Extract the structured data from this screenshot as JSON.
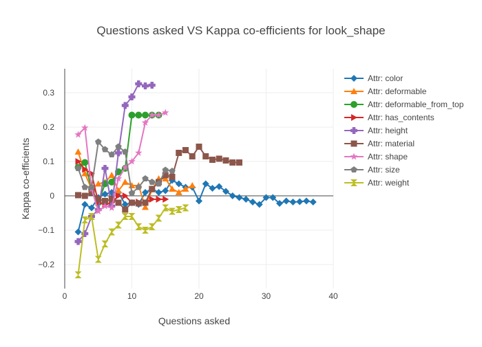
{
  "chart_data": {
    "type": "line",
    "title": "Questions asked VS Kappa co-efficients for look_shape",
    "xlabel": "Questions asked",
    "ylabel": "Kappa co-efficients",
    "xlim": [
      0,
      40
    ],
    "ylim": [
      -0.27,
      0.37
    ],
    "xticks": [
      0,
      10,
      20,
      30,
      40
    ],
    "yticks": [
      -0.2,
      -0.1,
      0,
      0.1,
      0.2,
      0.3
    ],
    "xtick_labels": [
      "0",
      "10",
      "20",
      "30",
      "40"
    ],
    "ytick_labels": [
      "−0.2",
      "−0.1",
      "0",
      "0.1",
      "0.2",
      "0.3"
    ],
    "grid": true,
    "legend_position": "right",
    "series": [
      {
        "name": "Attr: color",
        "color": "#1f77b4",
        "marker": "diamond",
        "x": [
          2,
          3,
          4,
          5,
          6,
          7,
          8,
          9,
          10,
          11,
          12,
          13,
          14,
          15,
          16,
          17,
          18,
          19,
          20,
          21,
          22,
          23,
          24,
          25,
          26,
          27,
          28,
          29,
          30,
          31,
          32,
          33,
          34,
          35,
          36,
          37
        ],
        "y": [
          -0.105,
          -0.025,
          -0.035,
          -0.005,
          0.005,
          0.01,
          0.01,
          -0.025,
          -0.02,
          -0.025,
          0.01,
          0.02,
          0.01,
          0.015,
          0.045,
          0.035,
          0.025,
          0.025,
          -0.015,
          0.035,
          0.022,
          0.027,
          0.013,
          0.0,
          -0.005,
          -0.01,
          -0.018,
          -0.025,
          -0.005,
          -0.005,
          -0.022,
          -0.015,
          -0.018,
          -0.017,
          -0.015,
          -0.018
        ]
      },
      {
        "name": "Attr: deformable",
        "color": "#ff7f0e",
        "marker": "triangle-up",
        "x": [
          2,
          3,
          4,
          5,
          6,
          7,
          8,
          9,
          10,
          11,
          12,
          13,
          14,
          15,
          16,
          17,
          18,
          19
        ],
        "y": [
          0.128,
          0.065,
          0.02,
          0.035,
          0.04,
          0.06,
          0.015,
          0.04,
          0.03,
          0.03,
          -0.033,
          0.018,
          0.05,
          0.05,
          0.02,
          0.01,
          0.02,
          0.03
        ]
      },
      {
        "name": "Attr: deformable_from_top",
        "color": "#2ca02c",
        "marker": "circle",
        "x": [
          2,
          3,
          4,
          5,
          6,
          7,
          8,
          9,
          10,
          11,
          12,
          13,
          14
        ],
        "y": [
          0.083,
          0.097,
          0.02,
          -0.02,
          0.035,
          0.04,
          0.07,
          0.08,
          0.235,
          0.235,
          0.235,
          0.235,
          0.235
        ]
      },
      {
        "name": "Attr: has_contents",
        "color": "#d62728",
        "marker": "triangle-right",
        "x": [
          2,
          3,
          4,
          5,
          6,
          7,
          8,
          9,
          10,
          11,
          12,
          13,
          14,
          15
        ],
        "y": [
          0.1,
          0.077,
          0.065,
          -0.02,
          -0.025,
          -0.02,
          0.0,
          0.0,
          -0.02,
          -0.018,
          -0.02,
          -0.01,
          -0.01,
          -0.01
        ]
      },
      {
        "name": "Attr: height",
        "color": "#9467bd",
        "marker": "cross",
        "x": [
          2,
          3,
          4,
          5,
          6,
          7,
          8,
          9,
          10,
          11,
          12,
          13
        ],
        "y": [
          -0.133,
          -0.11,
          -0.06,
          -0.04,
          0.08,
          -0.03,
          0.125,
          0.263,
          0.288,
          0.326,
          0.32,
          0.322
        ]
      },
      {
        "name": "Attr: material",
        "color": "#8c564b",
        "marker": "square",
        "x": [
          2,
          3,
          4,
          5,
          6,
          7,
          8,
          9,
          10,
          11,
          12,
          13,
          14,
          15,
          16,
          17,
          18,
          19,
          20,
          21,
          22,
          23,
          24,
          25,
          26
        ],
        "y": [
          0.002,
          0.0,
          0.01,
          -0.01,
          -0.015,
          -0.01,
          -0.02,
          -0.04,
          -0.02,
          -0.022,
          -0.02,
          0.02,
          0.04,
          0.06,
          0.055,
          0.125,
          0.133,
          0.115,
          0.143,
          0.115,
          0.105,
          0.108,
          0.103,
          0.097,
          0.097
        ]
      },
      {
        "name": "Attr: shape",
        "color": "#e377c2",
        "marker": "star",
        "x": [
          2,
          3,
          4,
          5,
          6,
          7,
          8,
          9,
          10,
          11,
          12,
          13,
          14,
          15
        ],
        "y": [
          0.178,
          0.198,
          0.02,
          -0.045,
          -0.03,
          -0.035,
          0.05,
          0.082,
          0.1,
          0.125,
          0.213,
          0.235,
          0.235,
          0.242
        ]
      },
      {
        "name": "Attr: size",
        "color": "#7f7f7f",
        "marker": "pentagon",
        "x": [
          2,
          3,
          4,
          5,
          6,
          7,
          8,
          9,
          10,
          11,
          12,
          13,
          14,
          15,
          16
        ],
        "y": [
          0.08,
          0.025,
          0.025,
          0.157,
          0.135,
          0.12,
          0.143,
          0.128,
          0.008,
          0.025,
          0.05,
          0.04,
          0.035,
          0.075,
          0.072
        ]
      },
      {
        "name": "Attr: weight",
        "color": "#bcbd22",
        "marker": "hourglass",
        "x": [
          2,
          3,
          4,
          5,
          6,
          7,
          8,
          9,
          10,
          11,
          12,
          13,
          14,
          15,
          16,
          17,
          18
        ],
        "y": [
          -0.23,
          -0.07,
          -0.06,
          -0.185,
          -0.14,
          -0.105,
          -0.085,
          -0.06,
          -0.06,
          -0.09,
          -0.1,
          -0.09,
          -0.065,
          -0.035,
          -0.045,
          -0.04,
          -0.035
        ]
      }
    ]
  }
}
